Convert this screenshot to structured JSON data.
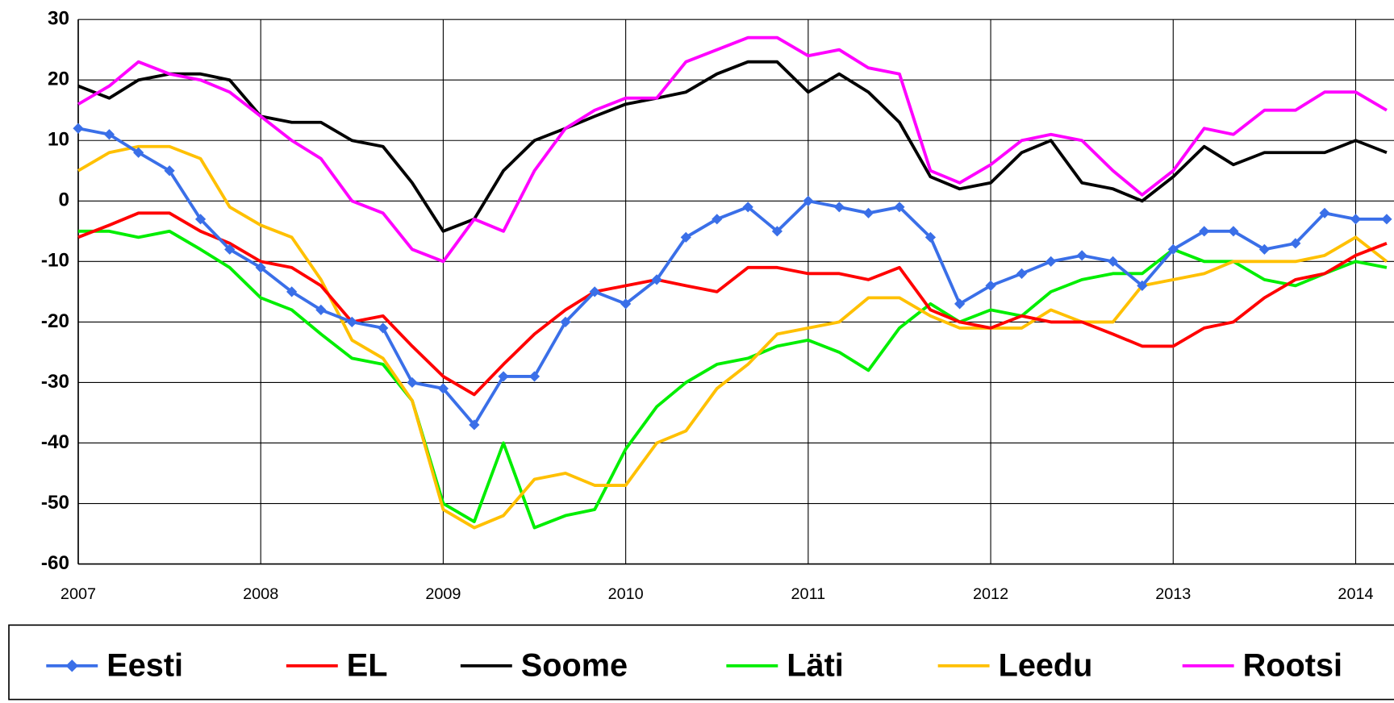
{
  "chart_data": {
    "type": "line",
    "x": [
      2007,
      2007.17,
      2007.33,
      2007.5,
      2007.67,
      2007.83,
      2008,
      2008.17,
      2008.33,
      2008.5,
      2008.67,
      2008.83,
      2009,
      2009.17,
      2009.33,
      2009.5,
      2009.67,
      2009.83,
      2010,
      2010.17,
      2010.33,
      2010.5,
      2010.67,
      2010.83,
      2011,
      2011.17,
      2011.33,
      2011.5,
      2011.67,
      2011.83,
      2012,
      2012.17,
      2012.33,
      2012.5,
      2012.67,
      2012.83,
      2013,
      2013.17,
      2013.33,
      2013.5,
      2013.67,
      2013.83,
      2014,
      2014.17
    ],
    "series": [
      {
        "name": "Eesti",
        "color": "#3a6fe8",
        "marker": "diamond",
        "values": [
          12,
          11,
          8,
          5,
          -3,
          -8,
          -11,
          -15,
          -18,
          -20,
          -21,
          -30,
          -31,
          -37,
          -29,
          -29,
          -20,
          -15,
          -17,
          -13,
          -6,
          -3,
          -1,
          -5,
          0,
          -1,
          -2,
          -1,
          -6,
          -17,
          -14,
          -12,
          -10,
          -9,
          -10,
          -14,
          -8,
          -5,
          -5,
          -8,
          -7,
          -2,
          -3,
          -3
        ]
      },
      {
        "name": "EL",
        "color": "#ff0000",
        "values": [
          -6,
          -4,
          -2,
          -2,
          -5,
          -7,
          -10,
          -11,
          -14,
          -20,
          -19,
          -24,
          -29,
          -32,
          -27,
          -22,
          -18,
          -15,
          -14,
          -13,
          -14,
          -15,
          -11,
          -11,
          -12,
          -12,
          -13,
          -11,
          -18,
          -20,
          -21,
          -19,
          -20,
          -20,
          -22,
          -24,
          -24,
          -21,
          -20,
          -16,
          -13,
          -12,
          -9,
          -7
        ]
      },
      {
        "name": "Soome",
        "color": "#000000",
        "values": [
          19,
          17,
          20,
          21,
          21,
          20,
          14,
          13,
          13,
          10,
          9,
          3,
          -5,
          -3,
          5,
          10,
          12,
          14,
          16,
          17,
          18,
          21,
          23,
          23,
          18,
          21,
          18,
          13,
          4,
          2,
          3,
          8,
          10,
          3,
          2,
          0,
          4,
          9,
          6,
          8,
          8,
          8,
          10,
          8
        ]
      },
      {
        "name": "Läti",
        "color": "#00ee00",
        "values": [
          -5,
          -5,
          -6,
          -5,
          -8,
          -11,
          -16,
          -18,
          -22,
          -26,
          -27,
          -33,
          -50,
          -53,
          -40,
          -54,
          -52,
          -51,
          -41,
          -34,
          -30,
          -27,
          -26,
          -24,
          -23,
          -25,
          -28,
          -21,
          -17,
          -20,
          -18,
          -19,
          -15,
          -13,
          -12,
          -12,
          -8,
          -10,
          -10,
          -13,
          -14,
          -12,
          -10,
          -11
        ]
      },
      {
        "name": "Leedu",
        "color": "#ffc000",
        "values": [
          5,
          8,
          9,
          9,
          7,
          -1,
          -4,
          -6,
          -13,
          -23,
          -26,
          -33,
          -51,
          -54,
          -52,
          -46,
          -45,
          -47,
          -47,
          -40,
          -38,
          -31,
          -27,
          -22,
          -21,
          -20,
          -16,
          -16,
          -19,
          -21,
          -21,
          -21,
          -18,
          -20,
          -20,
          -14,
          -13,
          -12,
          -10,
          -10,
          -10,
          -9,
          -6,
          -10
        ]
      },
      {
        "name": "Rootsi",
        "color": "#ff00ff",
        "values": [
          16,
          19,
          23,
          21,
          20,
          18,
          14,
          10,
          7,
          0,
          -2,
          -8,
          -10,
          -3,
          -5,
          5,
          12,
          15,
          17,
          17,
          23,
          25,
          27,
          27,
          24,
          25,
          22,
          21,
          5,
          3,
          6,
          10,
          11,
          10,
          5,
          1,
          5,
          12,
          11,
          15,
          15,
          18,
          18,
          15
        ]
      }
    ],
    "xlim": [
      2007,
      2014.21
    ],
    "xticks": [
      2007,
      2008,
      2009,
      2010,
      2011,
      2012,
      2013,
      2014
    ],
    "ylim": [
      -60,
      30
    ],
    "yticks": [
      -60,
      -50,
      -40,
      -30,
      -20,
      -10,
      0,
      10,
      20,
      30
    ],
    "grid": true,
    "legend": "bottom"
  }
}
